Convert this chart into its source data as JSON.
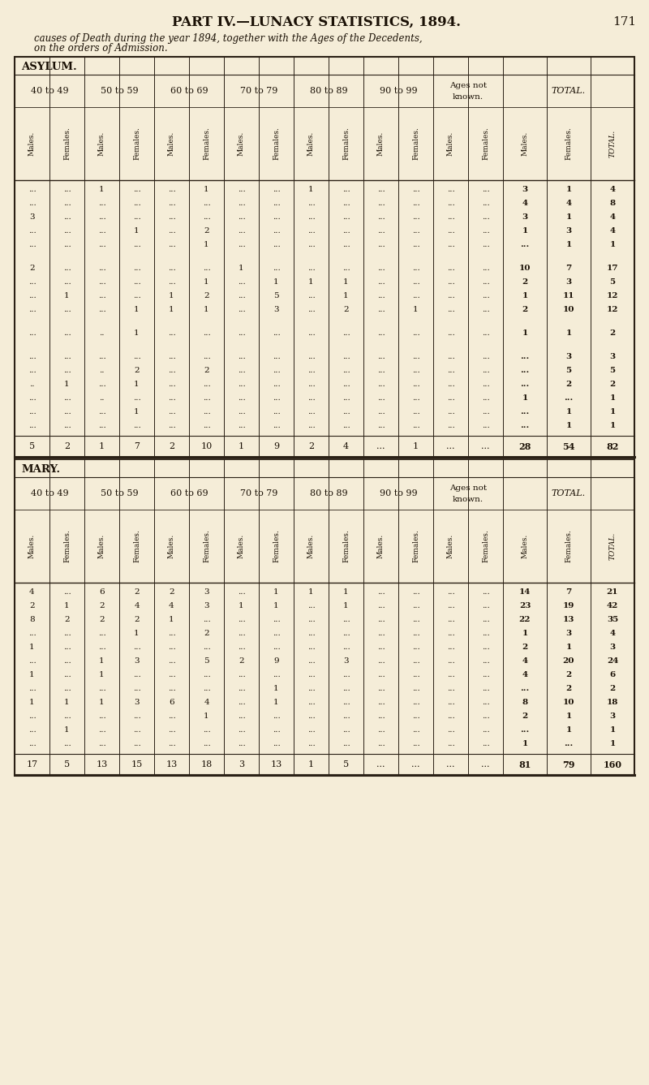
{
  "title": "PART IV.—LUNACY STATISTICS, 1894.",
  "page_num": "171",
  "subtitle1": "causes of Death during the year 1894, together with the Ages of the Decedents,",
  "subtitle2": "on the orders of Admission.",
  "section1": "ASYLUM.",
  "section2": "MARY.",
  "bg_color": "#f5edd8",
  "line_color": "#2a2015",
  "text_color": "#1a1005",
  "col_groups": [
    {
      "label": "40 to 49",
      "span": 2
    },
    {
      "label": "50 to 59",
      "span": 2
    },
    {
      "label": "60 to 69",
      "span": 2
    },
    {
      "label": "70 to 79",
      "span": 2
    },
    {
      "label": "80 to 89",
      "span": 2
    },
    {
      "label": "90 to 99",
      "span": 2
    },
    {
      "label": "Ages not\nknown.",
      "span": 2
    },
    {
      "label": "TOTAL.",
      "span": 3
    }
  ],
  "sub_headers": [
    "Males.",
    "Females.",
    "Males.",
    "Females.",
    "Males.",
    "Females.",
    "Males.",
    "Females.",
    "Males.",
    "Females.",
    "Males.",
    "Females.",
    "Males.",
    "Females.",
    "Males.",
    "Females.",
    "TOTAL."
  ],
  "asylum_row_groups": [
    [
      [
        "...",
        "...",
        "1",
        "...",
        "...",
        "1",
        "...",
        "...",
        "1",
        "...",
        "...",
        "...",
        "...",
        "...",
        "3",
        "1",
        "4"
      ],
      [
        "...",
        "...",
        "...",
        "...",
        "...",
        "...",
        "...",
        "...",
        "...",
        "...",
        "...",
        "...",
        "...",
        "...",
        "4",
        "4",
        "8"
      ],
      [
        "3",
        "...",
        "...",
        "...",
        "...",
        "...",
        "...",
        "...",
        "...",
        "...",
        "...",
        "...",
        "...",
        "...",
        "3",
        "1",
        "4"
      ],
      [
        "...",
        "...",
        "...",
        "1",
        "...",
        "2",
        "...",
        "...",
        "...",
        "...",
        "...",
        "...",
        "...",
        "...",
        "1",
        "3",
        "4"
      ],
      [
        "...",
        "...",
        "...",
        "...",
        "...",
        "1",
        "...",
        "...",
        "...",
        "...",
        "...",
        "...",
        "...",
        "...",
        "...",
        "1",
        "1"
      ]
    ],
    [
      [
        "2",
        "...",
        "...",
        "...",
        "...",
        "...",
        "1",
        "...",
        "...",
        "...",
        "...",
        "...",
        "...",
        "...",
        "10",
        "7",
        "17"
      ],
      [
        "...",
        "...",
        "...",
        "...",
        "...",
        "1",
        "...",
        "1",
        "1",
        "1",
        "...",
        "...",
        "...",
        "...",
        "2",
        "3",
        "5"
      ],
      [
        "...",
        "1",
        "...",
        "...",
        "1",
        "2",
        "...",
        "5",
        "...",
        "1",
        "...",
        "...",
        "...",
        "...",
        "1",
        "11",
        "12"
      ],
      [
        "...",
        "...",
        "...",
        "1",
        "1",
        "1",
        "...",
        "3",
        "...",
        "2",
        "...",
        "1",
        "...",
        "...",
        "2",
        "10",
        "12"
      ]
    ],
    [
      [
        "...",
        "...",
        "..",
        "1",
        "...",
        "...",
        "...",
        "...",
        "...",
        "...",
        "...",
        "...",
        "...",
        "...",
        "1",
        "1",
        "2"
      ]
    ],
    [
      [
        "...",
        "...",
        "...",
        "...",
        "...",
        "...",
        "...",
        "...",
        "...",
        "...",
        "...",
        "...",
        "...",
        "...",
        "...",
        "3",
        "3"
      ],
      [
        "...",
        "...",
        "..",
        "2",
        "...",
        "2",
        "...",
        "...",
        "...",
        "...",
        "...",
        "...",
        "...",
        "...",
        "...",
        "5",
        "5"
      ],
      [
        "..",
        "1",
        "...",
        "1",
        "...",
        "...",
        "...",
        "...",
        "...",
        "...",
        "...",
        "...",
        "...",
        "...",
        "...",
        "2",
        "2"
      ],
      [
        "...",
        "...",
        "..",
        "...",
        "...",
        "...",
        "...",
        "...",
        "...",
        "...",
        "...",
        "...",
        "...",
        "...",
        "1",
        "...",
        "1"
      ],
      [
        "...",
        "...",
        "...",
        "1",
        "...",
        "...",
        "...",
        "...",
        "...",
        "...",
        "...",
        "...",
        "...",
        "...",
        "...",
        "1",
        "1"
      ],
      [
        "...",
        "...",
        "...",
        "...",
        "...",
        "...",
        "...",
        "...",
        "...",
        "...",
        "...",
        "...",
        "...",
        "...",
        "...",
        "1",
        "1"
      ]
    ]
  ],
  "asylum_totals": [
    "5",
    "2",
    "1",
    "7",
    "2",
    "10",
    "1",
    "9",
    "2",
    "4",
    "...",
    "1",
    "...",
    "...",
    "28",
    "54",
    "82"
  ],
  "mary_row_groups": [
    [
      [
        "4",
        "...",
        "6",
        "2",
        "2",
        "3",
        "...",
        "1",
        "1",
        "1",
        "...",
        "...",
        "...",
        "...",
        "14",
        "7",
        "21"
      ],
      [
        "2",
        "1",
        "2",
        "4",
        "4",
        "3",
        "1",
        "1",
        "...",
        "1",
        "...",
        "...",
        "...",
        "...",
        "23",
        "19",
        "42"
      ],
      [
        "8",
        "2",
        "2",
        "2",
        "1",
        "...",
        "...",
        "...",
        "...",
        "...",
        "...",
        "...",
        "...",
        "...",
        "22",
        "13",
        "35"
      ],
      [
        "...",
        "...",
        "...",
        "1",
        "...",
        "2",
        "...",
        "...",
        "...",
        "...",
        "...",
        "...",
        "...",
        "...",
        "1",
        "3",
        "4"
      ],
      [
        "1",
        "...",
        "...",
        "...",
        "...",
        "...",
        "...",
        "...",
        "...",
        "...",
        "...",
        "...",
        "...",
        "...",
        "2",
        "1",
        "3"
      ],
      [
        "...",
        "...",
        "1",
        "3",
        "...",
        "5",
        "2",
        "9",
        "...",
        "3",
        "...",
        "...",
        "...",
        "...",
        "4",
        "20",
        "24"
      ],
      [
        "1",
        "...",
        "1",
        "...",
        "...",
        "...",
        "...",
        "...",
        "...",
        "...",
        "...",
        "...",
        "...",
        "...",
        "4",
        "2",
        "6"
      ],
      [
        "...",
        "...",
        "...",
        "...",
        "...",
        "...",
        "...",
        "1",
        "...",
        "...",
        "...",
        "...",
        "...",
        "...",
        "...",
        "2",
        "2"
      ],
      [
        "1",
        "1",
        "1",
        "3",
        "6",
        "4",
        "...",
        "1",
        "...",
        "...",
        "...",
        "...",
        "...",
        "...",
        "8",
        "10",
        "18"
      ],
      [
        "...",
        "...",
        "...",
        "...",
        "...",
        "1",
        "...",
        "...",
        "...",
        "...",
        "...",
        "...",
        "...",
        "...",
        "2",
        "1",
        "3"
      ],
      [
        "...",
        "1",
        "...",
        "...",
        "...",
        "...",
        "...",
        "...",
        "...",
        "...",
        "...",
        "...",
        "...",
        "...",
        "...",
        "1",
        "1"
      ],
      [
        "...",
        "...",
        "...",
        "...",
        "...",
        "...",
        "...",
        "...",
        "...",
        "...",
        "...",
        "...",
        "...",
        "...",
        "1",
        "...",
        "1"
      ]
    ]
  ],
  "mary_totals": [
    "17",
    "5",
    "13",
    "15",
    "13",
    "18",
    "3",
    "13",
    "1",
    "5",
    "...",
    "...",
    "...",
    "...",
    "81",
    "79",
    "160"
  ]
}
